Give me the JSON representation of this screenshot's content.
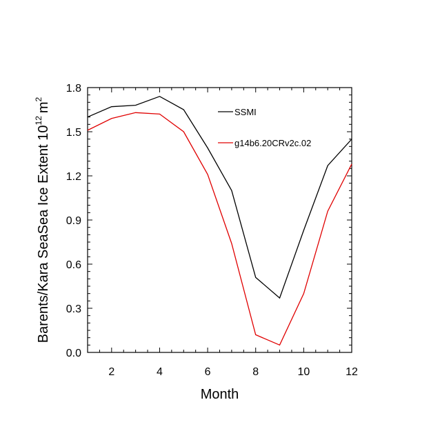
{
  "chart_data": {
    "type": "line",
    "title": "",
    "xlabel": "Month",
    "ylabel": {
      "base": "Barents/Kara SeaSea Ice Extent 10",
      "exponent": "12",
      "unit": "m",
      "unit_exponent": "2"
    },
    "xlim": [
      1,
      12
    ],
    "ylim": [
      0.0,
      1.8
    ],
    "xticks": [
      2,
      4,
      6,
      8,
      10,
      12
    ],
    "yticks": [
      0.0,
      0.3,
      0.6,
      0.9,
      1.2,
      1.5,
      1.8
    ],
    "ytick_labels": [
      "0.0",
      "0.3",
      "0.6",
      "0.9",
      "1.2",
      "1.5",
      "1.8"
    ],
    "grid": false,
    "legend_position": "top-right",
    "x": [
      1,
      2,
      3,
      4,
      5,
      6,
      7,
      8,
      9,
      10,
      11,
      12
    ],
    "series": [
      {
        "name": "SSMI",
        "color": "#000000",
        "values": [
          1.6,
          1.67,
          1.68,
          1.74,
          1.65,
          1.39,
          1.1,
          0.51,
          0.37,
          0.83,
          1.27,
          1.45
        ]
      },
      {
        "name": "g14b6.20CRv2c.02",
        "color": "#e00000",
        "values": [
          1.51,
          1.59,
          1.63,
          1.62,
          1.5,
          1.21,
          0.74,
          0.12,
          0.05,
          0.4,
          0.96,
          1.28
        ]
      }
    ]
  }
}
